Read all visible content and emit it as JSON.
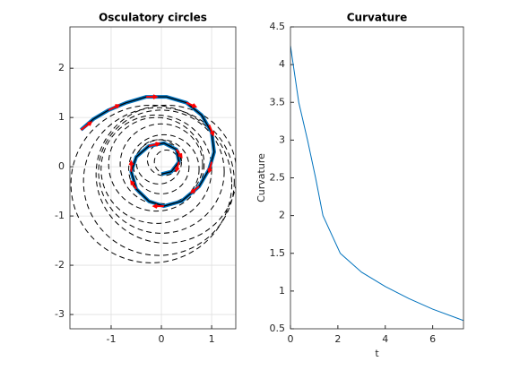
{
  "chart_data": [
    {
      "type": "spiral",
      "title": "Osculatory circles",
      "xlim": [
        -1.82,
        1.48
      ],
      "ylim": [
        -3.29,
        2.84
      ],
      "xticks": [
        -1,
        0,
        1
      ],
      "yticks": [
        -3,
        -2,
        -1,
        0,
        1,
        2
      ],
      "grid": true,
      "curve": {
        "color": "#0072bd",
        "x": [
          0.0,
          0.2,
          0.35,
          0.3,
          0.05,
          -0.25,
          -0.5,
          -0.6,
          -0.5,
          -0.25,
          0.05,
          0.4,
          0.75,
          0.95,
          1.05,
          1.0,
          0.8,
          0.5,
          0.1,
          -0.3,
          -0.7,
          -1.05,
          -1.35,
          -1.6
        ],
        "y": [
          -0.15,
          -0.1,
          0.1,
          0.35,
          0.48,
          0.42,
          0.2,
          -0.1,
          -0.45,
          -0.7,
          -0.8,
          -0.7,
          -0.4,
          -0.05,
          0.3,
          0.7,
          1.05,
          1.3,
          1.42,
          1.42,
          1.3,
          1.15,
          0.97,
          0.75
        ]
      },
      "circles": {
        "color": "#000000",
        "x": [
          0.1,
          0.05,
          -0.05,
          0,
          0.05,
          0,
          -0.1,
          -0.1,
          0,
          0.1,
          -0.05,
          -0.2
        ],
        "y": [
          0.1,
          0.15,
          0.1,
          0,
          -0.05,
          0.05,
          0.05,
          -0.05,
          -0.1,
          -0.15,
          -0.3,
          -0.35
        ],
        "r": [
          0.24,
          0.33,
          0.45,
          0.55,
          0.7,
          0.82,
          0.95,
          1.1,
          1.25,
          1.4,
          1.5,
          1.6
        ]
      },
      "arrows": {
        "color": "#ff0000",
        "x": [
          -1.6,
          -1.05,
          -0.3,
          0.5,
          0.95,
          1.0,
          0.75,
          0.05,
          -0.5,
          -0.6,
          -0.25,
          0.3,
          0.35
        ],
        "y": [
          0.75,
          1.15,
          1.42,
          1.3,
          0.85,
          0.1,
          -0.4,
          -0.8,
          -0.45,
          -0.1,
          0.42,
          0.35,
          0.1
        ],
        "u": [
          0.2,
          0.2,
          0.2,
          0.18,
          0.08,
          -0.05,
          -0.15,
          -0.2,
          -0.1,
          0,
          0.2,
          0.1,
          -0.05
        ],
        "v": [
          0.15,
          0.1,
          0,
          -0.08,
          -0.2,
          -0.2,
          -0.12,
          0,
          0.15,
          0.2,
          0.05,
          -0.15,
          -0.18
        ]
      }
    },
    {
      "type": "line",
      "title": "Curvature",
      "xlabel": "t",
      "ylabel": "Curvature",
      "xlim": [
        0,
        7.3
      ],
      "ylim": [
        0.5,
        4.5
      ],
      "xticks": [
        0,
        2,
        4,
        6
      ],
      "yticks": [
        0.5,
        1,
        1.5,
        2,
        2.5,
        3,
        3.5,
        4,
        4.5
      ],
      "grid": false,
      "color": "#0072bd",
      "x": [
        0,
        0.35,
        0.72,
        1.06,
        1.37,
        2.1,
        3,
        4,
        5,
        6,
        7.3
      ],
      "values": [
        4.25,
        3.5,
        3,
        2.5,
        2,
        1.5,
        1.25,
        1.06,
        0.9,
        0.76,
        0.61
      ]
    }
  ]
}
